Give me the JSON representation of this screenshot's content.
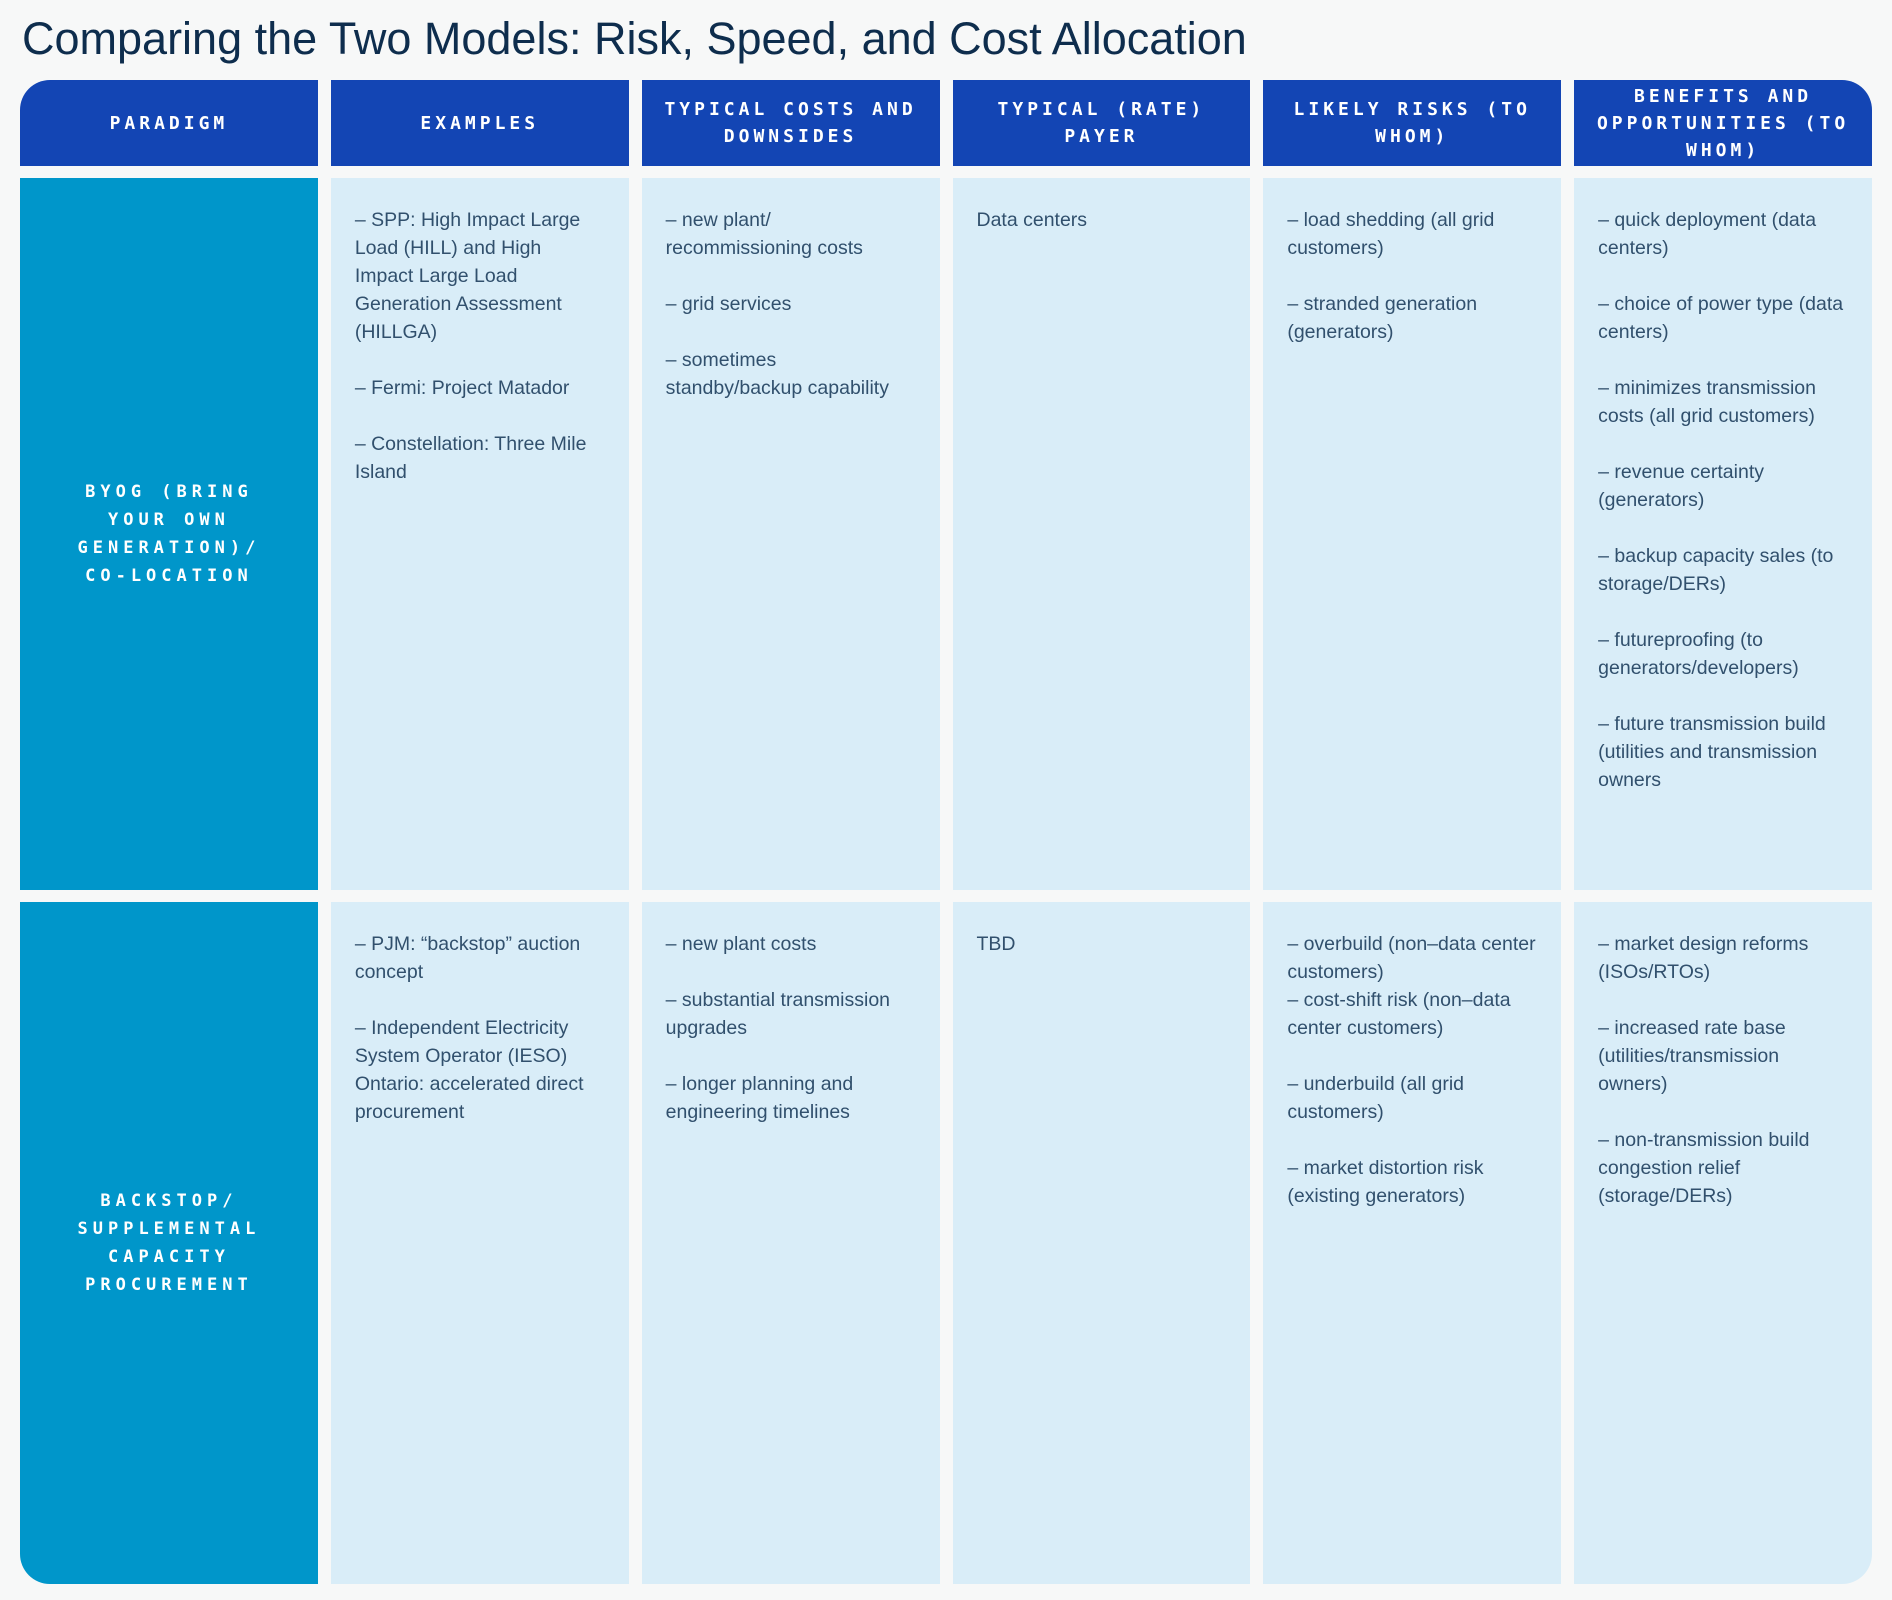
{
  "title": "Comparing the Two Models: Risk, Speed, and Cost Allocation",
  "colors": {
    "page_background": "#f7f8f8",
    "header_background": "#1345b4",
    "paradigm_background": "#0096ca",
    "cell_background": "#d9edf8",
    "title_text": "#0e2d4d",
    "body_text": "#31506d",
    "header_text": "#ffffff"
  },
  "chart_data": {
    "type": "table",
    "title": "Comparing the Two Models: Risk, Speed, and Cost Allocation",
    "columns": [
      "PARADIGM",
      "EXAMPLES",
      "TYPICAL COSTS AND DOWNSIDES",
      "TYPICAL (RATE) PAYER",
      "LIKELY RISKS (TO WHOM)",
      "BENEFITS AND OPPORTUNITIES (TO WHOM)"
    ],
    "rows": [
      {
        "paradigm": "BYOG (BRING YOUR OWN GENERATION)/ CO-LOCATION",
        "examples": [
          "– SPP: High Impact Large Load (HILL) and High Impact Large Load Generation Assessment (HILLGA)",
          "– Fermi: Project Matador",
          "– Constellation: Three Mile Island"
        ],
        "costs": [
          "– new plant/ recommissioning costs",
          "– grid services",
          "– sometimes standby/backup capability"
        ],
        "payer": "Data centers",
        "risks": [
          "– load shedding (all grid customers)",
          "– stranded generation (generators)"
        ],
        "benefits": [
          "– quick deployment (data centers)",
          "– choice of power type (data centers)",
          "– minimizes transmission costs (all grid customers)",
          "– revenue certainty (generators)",
          "– backup capacity sales (to storage/DERs)",
          "– futureproofing (to generators/developers)",
          "– future transmission build (utilities and transmission owners"
        ]
      },
      {
        "paradigm": "BACKSTOP/ SUPPLEMENTAL CAPACITY PROCUREMENT",
        "examples": [
          "– PJM: “backstop” auction concept",
          "– Independent Electricity System Operator (IESO) Ontario: accelerated direct procurement"
        ],
        "costs": [
          "– new plant costs",
          "– substantial transmission upgrades",
          "– longer planning and engineering timelines"
        ],
        "payer": "TBD",
        "risks": [
          "– overbuild (non–data center customers)",
          "– cost-shift risk (non–data center customers)",
          "– underbuild (all grid customers)",
          "– market distortion risk (existing generators)"
        ],
        "benefits": [
          "– market design reforms (ISOs/RTOs)",
          "– increased rate base (utilities/transmission owners)",
          "– non-transmission build congestion relief (storage/DERs)"
        ]
      }
    ]
  }
}
